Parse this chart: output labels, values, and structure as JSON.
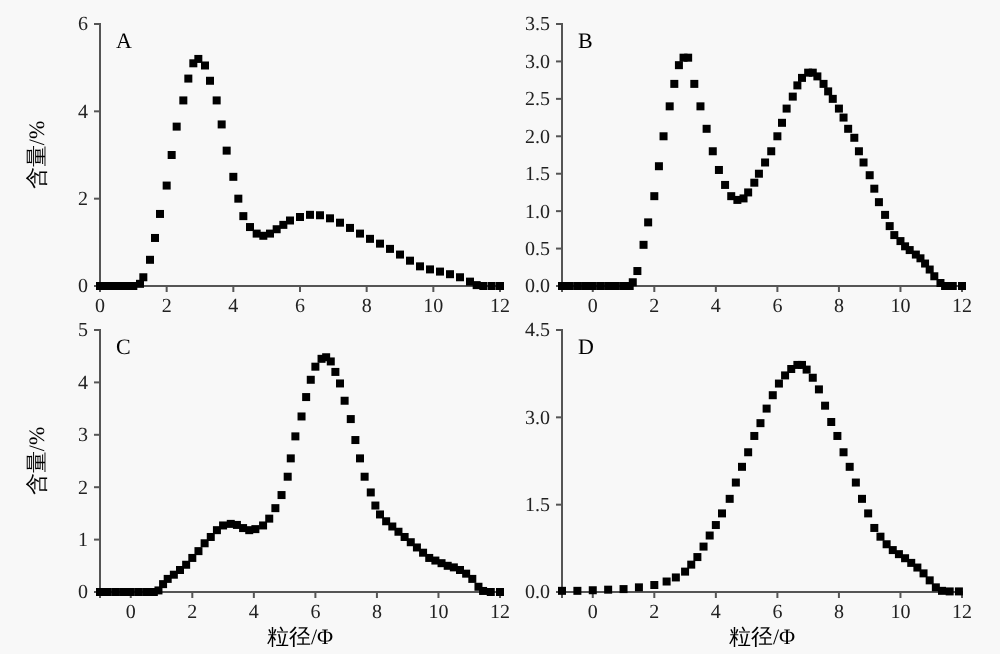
{
  "chart_data": [
    {
      "type": "scatter",
      "title": "A",
      "ylabel": "含量/%",
      "marker": "square",
      "xlim": [
        0,
        12
      ],
      "xticks": [
        0,
        2,
        4,
        6,
        8,
        10,
        12
      ],
      "ylim": [
        0,
        6
      ],
      "yticks": [
        0,
        2,
        4,
        6
      ],
      "x": [
        0,
        0.2,
        0.4,
        0.6,
        0.8,
        1.0,
        1.2,
        1.3,
        1.5,
        1.65,
        1.8,
        2.0,
        2.15,
        2.3,
        2.5,
        2.65,
        2.8,
        2.95,
        3.15,
        3.3,
        3.5,
        3.65,
        3.8,
        4.0,
        4.15,
        4.3,
        4.5,
        4.7,
        4.9,
        5.1,
        5.3,
        5.5,
        5.7,
        6.0,
        6.3,
        6.6,
        6.9,
        7.2,
        7.5,
        7.8,
        8.1,
        8.4,
        8.7,
        9.0,
        9.3,
        9.6,
        9.9,
        10.2,
        10.5,
        10.8,
        11.1,
        11.3,
        11.5,
        11.75,
        12
      ],
      "series": [
        {
          "color": "#000000",
          "values": [
            0,
            0,
            0,
            0,
            0,
            0,
            0.05,
            0.2,
            0.6,
            1.1,
            1.65,
            2.3,
            3.0,
            3.65,
            4.25,
            4.75,
            5.1,
            5.2,
            5.05,
            4.7,
            4.25,
            3.7,
            3.1,
            2.5,
            2.0,
            1.6,
            1.35,
            1.2,
            1.15,
            1.2,
            1.3,
            1.4,
            1.5,
            1.58,
            1.63,
            1.62,
            1.55,
            1.45,
            1.33,
            1.2,
            1.08,
            0.97,
            0.85,
            0.72,
            0.58,
            0.45,
            0.38,
            0.33,
            0.27,
            0.2,
            0.1,
            0.02,
            0,
            0,
            0
          ]
        }
      ]
    },
    {
      "type": "scatter",
      "title": "B",
      "marker": "square",
      "xlim": [
        -1,
        12
      ],
      "xticks": [
        0,
        2,
        4,
        6,
        8,
        10,
        12
      ],
      "ylim": [
        0,
        3.5
      ],
      "yticks": [
        {
          "value": 0,
          "label": "0.0"
        },
        {
          "value": 0.5,
          "label": "0.5"
        },
        {
          "value": 1,
          "label": "1.0"
        },
        {
          "value": 1.5,
          "label": "1.5"
        },
        {
          "value": 2,
          "label": "2.0"
        },
        {
          "value": 2.5,
          "label": "2.5"
        },
        {
          "value": 3,
          "label": "3.0"
        },
        {
          "value": 3.5,
          "label": "3.5"
        }
      ],
      "x": [
        -1,
        -0.75,
        -0.5,
        -0.25,
        0,
        0.25,
        0.5,
        0.75,
        1.0,
        1.2,
        1.3,
        1.45,
        1.65,
        1.8,
        2.0,
        2.15,
        2.3,
        2.5,
        2.65,
        2.8,
        2.95,
        3.1,
        3.3,
        3.5,
        3.7,
        3.9,
        4.1,
        4.3,
        4.5,
        4.7,
        4.9,
        5.05,
        5.25,
        5.4,
        5.6,
        5.8,
        6.0,
        6.15,
        6.3,
        6.5,
        6.65,
        6.8,
        7.0,
        7.15,
        7.3,
        7.5,
        7.65,
        7.8,
        8.0,
        8.15,
        8.3,
        8.5,
        8.65,
        8.8,
        9.0,
        9.15,
        9.3,
        9.5,
        9.65,
        9.8,
        10.0,
        10.15,
        10.3,
        10.5,
        10.65,
        10.8,
        10.95,
        11.1,
        11.3,
        11.45,
        11.7,
        12
      ],
      "series": [
        {
          "color": "#000000",
          "values": [
            0,
            0,
            0,
            0,
            0,
            0,
            0,
            0,
            0,
            0,
            0.05,
            0.2,
            0.55,
            0.85,
            1.2,
            1.6,
            2.0,
            2.4,
            2.7,
            2.95,
            3.05,
            3.05,
            2.7,
            2.4,
            2.1,
            1.8,
            1.55,
            1.35,
            1.2,
            1.15,
            1.17,
            1.25,
            1.38,
            1.5,
            1.65,
            1.8,
            2.0,
            2.18,
            2.37,
            2.53,
            2.68,
            2.78,
            2.85,
            2.85,
            2.8,
            2.7,
            2.6,
            2.5,
            2.37,
            2.25,
            2.1,
            1.98,
            1.8,
            1.65,
            1.48,
            1.3,
            1.12,
            0.95,
            0.8,
            0.68,
            0.6,
            0.53,
            0.48,
            0.42,
            0.37,
            0.3,
            0.22,
            0.13,
            0.04,
            0,
            0,
            0
          ]
        }
      ]
    },
    {
      "type": "scatter",
      "title": "C",
      "ylabel": "含量/%",
      "xlabel": "粒径/Φ",
      "marker": "square",
      "xlim": [
        -1,
        12
      ],
      "xticks": [
        0,
        2,
        4,
        6,
        8,
        10,
        12
      ],
      "ylim": [
        0,
        5
      ],
      "yticks": [
        0,
        1,
        2,
        3,
        4,
        5
      ],
      "x": [
        -1,
        -0.75,
        -0.5,
        -0.25,
        0,
        0.25,
        0.5,
        0.75,
        0.9,
        1.05,
        1.2,
        1.4,
        1.6,
        1.8,
        2.0,
        2.2,
        2.4,
        2.6,
        2.8,
        3.0,
        3.25,
        3.45,
        3.65,
        3.85,
        4.05,
        4.3,
        4.5,
        4.7,
        4.9,
        5.1,
        5.2,
        5.35,
        5.55,
        5.7,
        5.85,
        6.0,
        6.2,
        6.35,
        6.5,
        6.65,
        6.8,
        6.95,
        7.15,
        7.3,
        7.45,
        7.6,
        7.8,
        7.95,
        8.1,
        8.3,
        8.5,
        8.7,
        8.9,
        9.1,
        9.3,
        9.5,
        9.7,
        9.9,
        10.1,
        10.3,
        10.5,
        10.7,
        10.9,
        11.1,
        11.3,
        11.45,
        11.7,
        12
      ],
      "series": [
        {
          "color": "#000000",
          "values": [
            0,
            0,
            0,
            0,
            0,
            0,
            0,
            0,
            0.03,
            0.15,
            0.25,
            0.33,
            0.42,
            0.52,
            0.65,
            0.78,
            0.93,
            1.05,
            1.18,
            1.27,
            1.3,
            1.28,
            1.22,
            1.18,
            1.2,
            1.27,
            1.4,
            1.6,
            1.85,
            2.2,
            2.55,
            2.97,
            3.35,
            3.72,
            4.05,
            4.3,
            4.45,
            4.48,
            4.4,
            4.2,
            3.98,
            3.65,
            3.3,
            2.9,
            2.55,
            2.2,
            1.9,
            1.65,
            1.48,
            1.35,
            1.25,
            1.15,
            1.05,
            0.95,
            0.85,
            0.75,
            0.65,
            0.6,
            0.55,
            0.5,
            0.47,
            0.42,
            0.35,
            0.25,
            0.1,
            0.02,
            0,
            0
          ]
        }
      ]
    },
    {
      "type": "scatter",
      "title": "D",
      "xlabel": "粒径/Φ",
      "marker": "square",
      "xlim": [
        -1,
        12
      ],
      "xticks": [
        0,
        2,
        4,
        6,
        8,
        10,
        12
      ],
      "ylim": [
        0,
        4.5
      ],
      "yticks": [
        {
          "value": 0,
          "label": "0.0"
        },
        {
          "value": 1.5,
          "label": "1.5"
        },
        {
          "value": 3,
          "label": "3.0"
        },
        {
          "value": 4.5,
          "label": "4.5"
        }
      ],
      "x": [
        -1,
        -0.5,
        0,
        0.5,
        1.0,
        1.5,
        2.0,
        2.4,
        2.7,
        3.0,
        3.2,
        3.4,
        3.6,
        3.8,
        4.0,
        4.2,
        4.45,
        4.65,
        4.85,
        5.05,
        5.25,
        5.45,
        5.65,
        5.85,
        6.05,
        6.25,
        6.45,
        6.65,
        6.8,
        6.95,
        7.15,
        7.35,
        7.55,
        7.75,
        7.95,
        8.15,
        8.35,
        8.55,
        8.75,
        8.95,
        9.15,
        9.35,
        9.55,
        9.75,
        9.95,
        10.15,
        10.35,
        10.55,
        10.75,
        10.95,
        11.15,
        11.35,
        11.6,
        11.9
      ],
      "series": [
        {
          "color": "#000000",
          "values": [
            0.02,
            0.02,
            0.03,
            0.04,
            0.05,
            0.08,
            0.12,
            0.18,
            0.25,
            0.35,
            0.47,
            0.6,
            0.78,
            0.97,
            1.15,
            1.35,
            1.6,
            1.88,
            2.15,
            2.4,
            2.68,
            2.9,
            3.15,
            3.38,
            3.58,
            3.72,
            3.83,
            3.9,
            3.9,
            3.82,
            3.68,
            3.48,
            3.2,
            2.92,
            2.68,
            2.4,
            2.15,
            1.88,
            1.6,
            1.35,
            1.1,
            0.95,
            0.82,
            0.72,
            0.65,
            0.58,
            0.5,
            0.42,
            0.32,
            0.2,
            0.08,
            0.02,
            0.01,
            0.01
          ]
        }
      ]
    }
  ]
}
